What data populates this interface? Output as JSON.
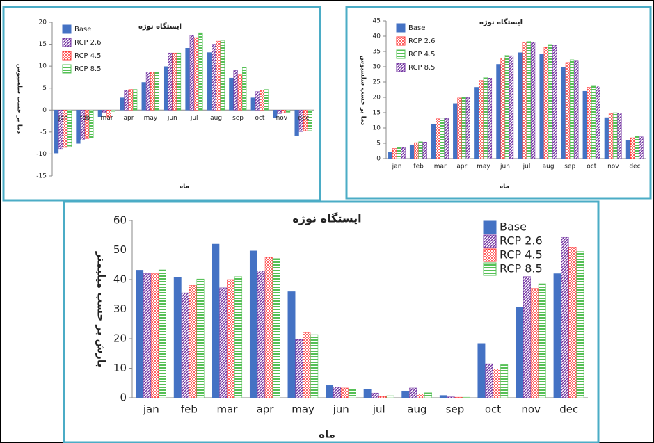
{
  "chart_data": [
    {
      "type": "bar",
      "title": "ایستگاه نوژه",
      "y_label": "دما بر حسب سلسیوس",
      "x_label": "ماه",
      "categories": [
        "jan",
        "feb",
        "mar",
        "apr",
        "may",
        "jun",
        "jul",
        "aug",
        "sep",
        "oct",
        "nov",
        "dec"
      ],
      "series": [
        {
          "name": "Base",
          "color": "#4472c4",
          "pattern": "solid",
          "values": [
            -9.8,
            -7.6,
            -1.5,
            2.8,
            6.3,
            9.9,
            14.1,
            13.1,
            7.3,
            2.8,
            -1.8,
            -5.8
          ]
        },
        {
          "name": "RCP 2.6",
          "color": "#7030a0",
          "pattern": "hatch",
          "values": [
            -8.8,
            -6.8,
            -0.5,
            4.5,
            8.7,
            13,
            17.1,
            15,
            9,
            4.2,
            -0.8,
            -4.9
          ]
        },
        {
          "name": "RCP 4.5",
          "color": "#ff3333",
          "pattern": "dots",
          "values": [
            -8.5,
            -6.5,
            -1.6,
            4.7,
            8.7,
            13,
            16.5,
            15.7,
            8,
            4.5,
            -0.6,
            -4.7
          ]
        },
        {
          "name": "RCP 8.5",
          "color": "#55c055",
          "pattern": "lines",
          "values": [
            -8.3,
            -6.4,
            -0.3,
            4.7,
            8.7,
            13,
            17.6,
            15.8,
            9.8,
            4.7,
            -0.5,
            -4.6
          ]
        }
      ],
      "ylim": [
        -15,
        20
      ],
      "yticks": [
        -15,
        -10,
        -5,
        0,
        5,
        10,
        15,
        20
      ],
      "legend": "upper left"
    },
    {
      "type": "bar",
      "title": "ایستگاه نوژه",
      "y_label": "دما بر حسب سلسیوس",
      "x_label": "ماه",
      "categories": [
        "jan",
        "feb",
        "mar",
        "apr",
        "may",
        "jun",
        "jul",
        "aug",
        "sep",
        "oct",
        "nov",
        "dec"
      ],
      "series": [
        {
          "name": "Base",
          "color": "#4472c4",
          "pattern": "solid",
          "values": [
            2.2,
            4.5,
            11.3,
            18,
            23.3,
            30.8,
            34.6,
            34.1,
            29.8,
            22,
            13.4,
            5.9
          ]
        },
        {
          "name": "RCP 2.6",
          "color": "#ff3333",
          "pattern": "dots",
          "values": [
            3.3,
            5.2,
            13,
            19.8,
            25.5,
            32.8,
            38,
            36.3,
            31.4,
            23.3,
            14.7,
            6.8
          ]
        },
        {
          "name": "RCP 4.5",
          "color": "#55c055",
          "pattern": "lines",
          "values": [
            3.6,
            5.5,
            13.2,
            20,
            26.5,
            33.8,
            38.3,
            37.3,
            32.3,
            23.9,
            15,
            7.3
          ]
        },
        {
          "name": "RCP 8.5",
          "color": "#7030a0",
          "pattern": "hatch",
          "values": [
            3.6,
            5.4,
            13.1,
            19.9,
            26.3,
            33.6,
            38.1,
            37,
            32.1,
            23.8,
            14.9,
            7.1
          ]
        }
      ],
      "ylim": [
        0,
        45
      ],
      "yticks": [
        0,
        5,
        10,
        15,
        20,
        25,
        30,
        35,
        40,
        45
      ],
      "legend": "upper left"
    },
    {
      "type": "bar",
      "title": "ایستگاه نوژه",
      "y_label": "بارش بر حسب میلیمتر",
      "x_label": "ماه",
      "categories": [
        "jan",
        "feb",
        "mar",
        "apr",
        "may",
        "jun",
        "jul",
        "aug",
        "sep",
        "oct",
        "nov",
        "dec"
      ],
      "series": [
        {
          "name": "Base",
          "color": "#4472c4",
          "pattern": "solid",
          "values": [
            43.2,
            40.8,
            52,
            49.7,
            35.9,
            4.2,
            2.9,
            2.3,
            0.8,
            18.4,
            30.6,
            42
          ]
        },
        {
          "name": "RCP 2.6",
          "color": "#7030a0",
          "pattern": "hatch",
          "values": [
            42,
            35.5,
            37.2,
            43,
            19.7,
            3.6,
            1.6,
            3.3,
            0.3,
            11.5,
            41,
            54.3
          ]
        },
        {
          "name": "RCP 4.5",
          "color": "#ff3333",
          "pattern": "dots",
          "values": [
            42,
            38,
            40,
            47.5,
            22,
            3.3,
            0.4,
            1.3,
            0.2,
            9.7,
            37,
            51
          ]
        },
        {
          "name": "RCP 8.5",
          "color": "#55c055",
          "pattern": "lines",
          "values": [
            43.3,
            40.2,
            41,
            47.2,
            21.4,
            3,
            0.7,
            1.7,
            0.2,
            11.2,
            38.6,
            49.5
          ]
        }
      ],
      "ylim": [
        0,
        60
      ],
      "yticks": [
        0,
        10,
        20,
        30,
        40,
        50,
        60
      ],
      "legend": "upper right"
    }
  ]
}
